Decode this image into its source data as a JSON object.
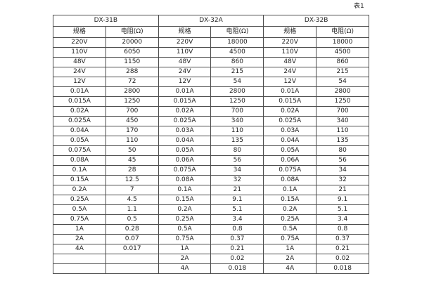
{
  "page": {
    "table_label": "表1"
  },
  "table": {
    "groups": [
      {
        "name": "DX-31B",
        "spec_header": "规格",
        "res_header": "电阻(Ω)"
      },
      {
        "name": "DX-32A",
        "spec_header": "规格",
        "res_header": "电阻(Ω)"
      },
      {
        "name": "DX-32B",
        "spec_header": "规格",
        "res_header": "电阻(Ω)"
      }
    ],
    "rows": [
      [
        "220V",
        "20000",
        "220V",
        "18000",
        "220V",
        "18000"
      ],
      [
        "110V",
        "6050",
        "110V",
        "4500",
        "110V",
        "4500"
      ],
      [
        "48V",
        "1150",
        "48V",
        "860",
        "48V",
        "860"
      ],
      [
        "24V",
        "288",
        "24V",
        "215",
        "24V",
        "215"
      ],
      [
        "12V",
        "72",
        "12V",
        "54",
        "12V",
        "54"
      ],
      [
        "0.01A",
        "2800",
        "0.01A",
        "2800",
        "0.01A",
        "2800"
      ],
      [
        "0.015A",
        "1250",
        "0.015A",
        "1250",
        "0.015A",
        "1250"
      ],
      [
        "0.02A",
        "700",
        "0.02A",
        "700",
        "0.02A",
        "700"
      ],
      [
        "0.025A",
        "450",
        "0.025A",
        "340",
        "0.025A",
        "340"
      ],
      [
        "0.04A",
        "170",
        "0.03A",
        "110",
        "0.03A",
        "110"
      ],
      [
        "0.05A",
        "110",
        "0.04A",
        "135",
        "0.04A",
        "135"
      ],
      [
        "0.075A",
        "50",
        "0.05A",
        "80",
        "0.05A",
        "80"
      ],
      [
        "0.08A",
        "45",
        "0.06A",
        "56",
        "0.06A",
        "56"
      ],
      [
        "0.1A",
        "28",
        "0.075A",
        "34",
        "0.075A",
        "34"
      ],
      [
        "0.15A",
        "12.5",
        "0.08A",
        "32",
        "0.08A",
        "32"
      ],
      [
        "0.2A",
        "7",
        "0.1A",
        "21",
        "0.1A",
        "21"
      ],
      [
        "0.25A",
        "4.5",
        "0.15A",
        "9.1",
        "0.15A",
        "9.1"
      ],
      [
        "0.5A",
        "1.1",
        "0.2A",
        "5.1",
        "0.2A",
        "5.1"
      ],
      [
        "0.75A",
        "0.5",
        "0.25A",
        "3.4",
        "0.25A",
        "3.4"
      ],
      [
        "1A",
        "0.28",
        "0.5A",
        "0.8",
        "0.5A",
        "0.8"
      ],
      [
        "2A",
        "0.07",
        "0.75A",
        "0.37",
        "0.75A",
        "0.37"
      ],
      [
        "4A",
        "0.017",
        "1A",
        "0.21",
        "1A",
        "0.21"
      ],
      [
        "",
        "",
        "2A",
        "0.02",
        "2A",
        "0.02"
      ],
      [
        "",
        "",
        "4A",
        "0.018",
        "4A",
        "0.018"
      ]
    ]
  }
}
